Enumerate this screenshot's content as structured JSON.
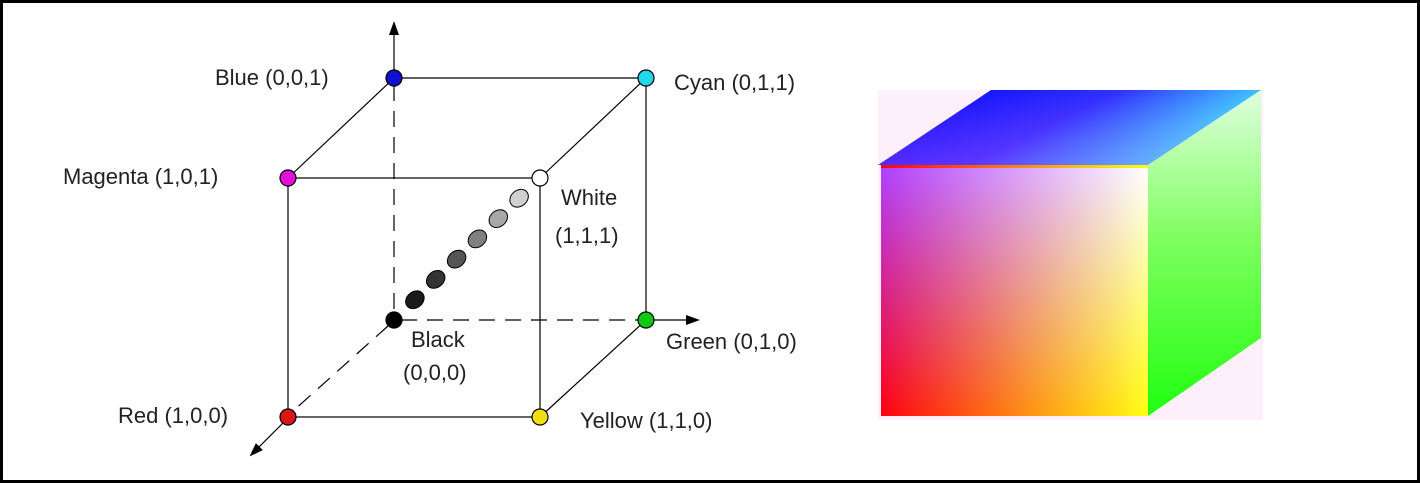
{
  "diagram": {
    "vertices": [
      {
        "id": "blue",
        "label": "Blue (0,0,1)",
        "color": "#1010d0"
      },
      {
        "id": "cyan",
        "label": "Cyan (0,1,1)",
        "color": "#22d8e8"
      },
      {
        "id": "magenta",
        "label": "Magenta (1,0,1)",
        "color": "#e010d8"
      },
      {
        "id": "white",
        "label_line1": "White",
        "label_line2": "(1,1,1)",
        "color": "#ffffff"
      },
      {
        "id": "black",
        "label_line1": "Black",
        "label_line2": "(0,0,0)",
        "color": "#000000"
      },
      {
        "id": "green",
        "label": "Green (0,1,0)",
        "color": "#10c810"
      },
      {
        "id": "red",
        "label": "Red (1,0,0)",
        "color": "#d81818"
      },
      {
        "id": "yellow",
        "label": "Yellow (1,1,0)",
        "color": "#f0e010"
      }
    ],
    "grayscale_colors": [
      "#1a1a1a",
      "#333333",
      "#555555",
      "#808080",
      "#a8a8a8",
      "#d0d0d0"
    ]
  },
  "color_cube": {
    "colors": {
      "top_back": "#0000ff",
      "top_right": "#40ffff",
      "front_top_left": "#b040ff",
      "front_top_right": "#ffffff",
      "front_bottom_left": "#ff0010",
      "front_bottom_right": "#ffff10",
      "side_bottom": "#20ff10",
      "background_tint": "#fdf0fb"
    }
  }
}
